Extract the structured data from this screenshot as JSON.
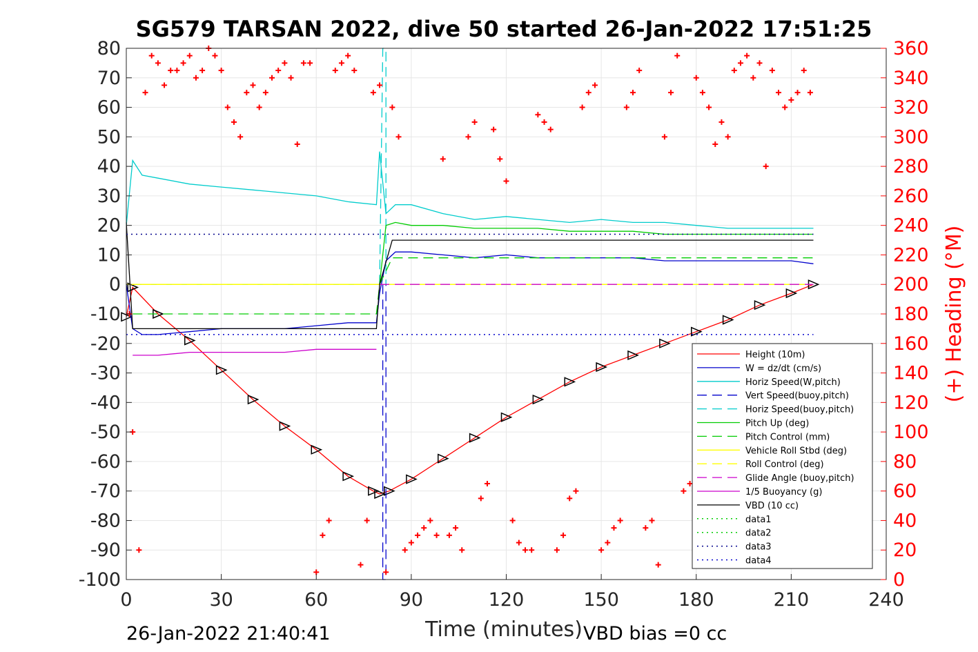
{
  "chart_data": {
    "type": "line",
    "title": "SG579 TARSAN 2022, dive 50 started 26-Jan-2022 17:51:25",
    "xlabel": "Time (minutes)",
    "ylabel_right": "(+) Heading (°M)",
    "xlim": [
      0,
      240
    ],
    "ylim": [
      -100,
      80
    ],
    "ylim_right": [
      0,
      360
    ],
    "x_ticks": [
      "0",
      "30",
      "60",
      "90",
      "120",
      "150",
      "180",
      "210",
      "240"
    ],
    "y_ticks": [
      "80",
      "70",
      "60",
      "50",
      "40",
      "30",
      "20",
      "10",
      "0",
      "-10",
      "-20",
      "-30",
      "-40",
      "-50",
      "-60",
      "-70",
      "-80",
      "-90",
      "-100"
    ],
    "y_ticks_right": [
      "360",
      "340",
      "320",
      "300",
      "280",
      "260",
      "240",
      "220",
      "200",
      "180",
      "160",
      "140",
      "120",
      "100",
      "80",
      "60",
      "40",
      "20",
      "0"
    ],
    "grid": true,
    "legend_position": "lower-right",
    "series": [
      {
        "name": "Height (10m)",
        "color": "#ff0000",
        "style": "solid",
        "marker": "triangle",
        "x": [
          0,
          2,
          10,
          20,
          30,
          40,
          50,
          60,
          70,
          78,
          80,
          83,
          90,
          100,
          110,
          120,
          130,
          140,
          150,
          160,
          170,
          180,
          190,
          200,
          210,
          217
        ],
        "y": [
          -11,
          -1,
          -10,
          -19,
          -29,
          -39,
          -48,
          -56,
          -65,
          -70,
          -71,
          -70,
          -66,
          -59,
          -52,
          -45,
          -39,
          -33,
          -28,
          -24,
          -20,
          -16,
          -12,
          -7,
          -3,
          0
        ]
      },
      {
        "name": "W = dz/dt (cm/s)",
        "color": "#0000cc",
        "style": "solid",
        "x": [
          0,
          2,
          5,
          10,
          20,
          30,
          40,
          50,
          60,
          70,
          79,
          80,
          82,
          85,
          90,
          100,
          110,
          120,
          130,
          140,
          150,
          160,
          170,
          180,
          190,
          200,
          210,
          217
        ],
        "y": [
          0,
          -15,
          -17,
          -17,
          -16,
          -15,
          -15,
          -15,
          -14,
          -13,
          -13,
          -3,
          8,
          11,
          11,
          10,
          9,
          10,
          9,
          9,
          9,
          9,
          8,
          8,
          8,
          8,
          8,
          7
        ]
      },
      {
        "name": "Horiz Speed(W,pitch)",
        "color": "#00cccc",
        "style": "solid",
        "x": [
          0,
          2,
          5,
          10,
          20,
          30,
          40,
          50,
          60,
          70,
          79,
          80,
          82,
          85,
          90,
          100,
          110,
          120,
          130,
          140,
          150,
          160,
          170,
          180,
          190,
          200,
          210,
          217
        ],
        "y": [
          20,
          42,
          37,
          36,
          34,
          33,
          32,
          31,
          30,
          28,
          27,
          45,
          24,
          27,
          27,
          24,
          22,
          23,
          22,
          21,
          22,
          21,
          21,
          20,
          19,
          19,
          19,
          19
        ]
      },
      {
        "name": "Vert Speed(buoy,pitch)",
        "color": "#0000cc",
        "style": "dashed",
        "x": [
          81,
          81,
          82,
          82
        ],
        "y": [
          0,
          -100,
          -100,
          0
        ]
      },
      {
        "name": "Horiz Speed(buoy,pitch)",
        "color": "#00cccc",
        "style": "dashed",
        "x": [
          80,
          81,
          82,
          82
        ],
        "y": [
          0,
          80,
          80,
          0
        ]
      },
      {
        "name": "Pitch Up (deg)",
        "color": "#00cc00",
        "style": "solid",
        "x": [
          0,
          79,
          80,
          82,
          85,
          90,
          100,
          110,
          120,
          130,
          140,
          150,
          160,
          170,
          180,
          190,
          200,
          210,
          217
        ],
        "y": [
          0,
          0,
          0,
          20,
          21,
          20,
          20,
          19,
          19,
          19,
          18,
          18,
          18,
          17,
          17,
          17,
          17,
          17,
          17
        ]
      },
      {
        "name": "Pitch Control (mm)",
        "color": "#00cc00",
        "style": "dashed",
        "x": [
          2,
          79,
          80,
          84,
          217
        ],
        "y": [
          -10,
          -10,
          0,
          9,
          9
        ]
      },
      {
        "name": "Vehicle Roll Stbd (deg)",
        "color": "#ffff00",
        "style": "solid",
        "x": [
          0,
          217
        ],
        "y": [
          0,
          0
        ]
      },
      {
        "name": "Roll Control (deg)",
        "color": "#ffff00",
        "style": "dashed",
        "x": [
          0,
          217
        ],
        "y": [
          0,
          0
        ]
      },
      {
        "name": "Glide Angle (buoy,pitch)",
        "color": "#cc00cc",
        "style": "dashed",
        "x": [
          80,
          217
        ],
        "y": [
          0,
          0
        ]
      },
      {
        "name": "1/5 Buoyancy (g)",
        "color": "#cc00cc",
        "style": "solid",
        "x": [
          2,
          10,
          20,
          30,
          40,
          50,
          60,
          70,
          79
        ],
        "y": [
          -24,
          -24,
          -23,
          -23,
          -23,
          -23,
          -22,
          -22,
          -22
        ]
      },
      {
        "name": "VBD (10 cc)",
        "color": "#000000",
        "style": "solid",
        "x": [
          0,
          2,
          79,
          80,
          84,
          217
        ],
        "y": [
          21,
          -15,
          -15,
          0,
          15,
          15
        ]
      },
      {
        "name": "data1",
        "color": "#00cc00",
        "style": "dotted",
        "x": [],
        "y": []
      },
      {
        "name": "data2",
        "color": "#00cc00",
        "style": "dotted",
        "x": [],
        "y": []
      },
      {
        "name": "data3",
        "color": "#00008b",
        "style": "dotted",
        "x": [
          0,
          217
        ],
        "y": [
          17,
          17
        ]
      },
      {
        "name": "data4",
        "color": "#0000cc",
        "style": "dotted",
        "x": [
          0,
          217
        ],
        "y": [
          -17,
          -17
        ]
      }
    ],
    "heading_series": {
      "color": "#ff0000",
      "marker": "+",
      "axis": "right",
      "x": [
        1,
        2,
        4,
        6,
        8,
        10,
        12,
        14,
        16,
        18,
        20,
        22,
        24,
        26,
        28,
        30,
        32,
        34,
        36,
        38,
        40,
        42,
        44,
        46,
        48,
        50,
        52,
        54,
        56,
        58,
        60,
        62,
        64,
        66,
        68,
        70,
        72,
        74,
        76,
        78,
        80,
        82,
        84,
        86,
        88,
        90,
        92,
        94,
        96,
        98,
        100,
        102,
        104,
        106,
        108,
        110,
        112,
        114,
        116,
        118,
        120,
        122,
        124,
        126,
        128,
        130,
        132,
        134,
        136,
        138,
        140,
        142,
        144,
        146,
        148,
        150,
        152,
        154,
        156,
        158,
        160,
        162,
        164,
        166,
        168,
        170,
        172,
        174,
        176,
        178,
        180,
        182,
        184,
        186,
        188,
        190,
        192,
        194,
        196,
        198,
        200,
        202,
        204,
        206,
        208,
        210,
        212,
        214,
        216
      ],
      "y": [
        180,
        100,
        20,
        330,
        355,
        350,
        335,
        345,
        345,
        350,
        355,
        340,
        345,
        360,
        355,
        345,
        320,
        310,
        300,
        330,
        335,
        320,
        330,
        340,
        345,
        350,
        340,
        295,
        350,
        350,
        5,
        30,
        40,
        345,
        350,
        355,
        345,
        10,
        40,
        330,
        335,
        5,
        320,
        300,
        20,
        25,
        30,
        35,
        40,
        30,
        285,
        30,
        35,
        20,
        300,
        310,
        55,
        65,
        305,
        285,
        270,
        40,
        25,
        20,
        20,
        315,
        310,
        305,
        20,
        30,
        55,
        60,
        320,
        330,
        335,
        20,
        25,
        35,
        40,
        320,
        330,
        345,
        35,
        40,
        10,
        300,
        330,
        355,
        60,
        65,
        340,
        330,
        320,
        295,
        310,
        300,
        345,
        350,
        355,
        340,
        350,
        280,
        345,
        330,
        320,
        325,
        330,
        345,
        330
      ]
    },
    "legend": [
      "Height (10m)",
      "W = dz/dt (cm/s)",
      "Horiz Speed(W,pitch)",
      "Vert Speed(buoy,pitch)",
      "Horiz Speed(buoy,pitch)",
      "Pitch Up (deg)",
      "Pitch Control (mm)",
      "Vehicle Roll Stbd (deg)",
      "Roll Control (deg)",
      "Glide Angle (buoy,pitch)",
      "1/5 Buoyancy (g)",
      "VBD (10 cc)",
      "data1",
      "data2",
      "data3",
      "data4"
    ]
  },
  "footer": {
    "timestamp": "26-Jan-2022 21:40:41",
    "vbd_bias": "VBD bias =0 cc"
  }
}
